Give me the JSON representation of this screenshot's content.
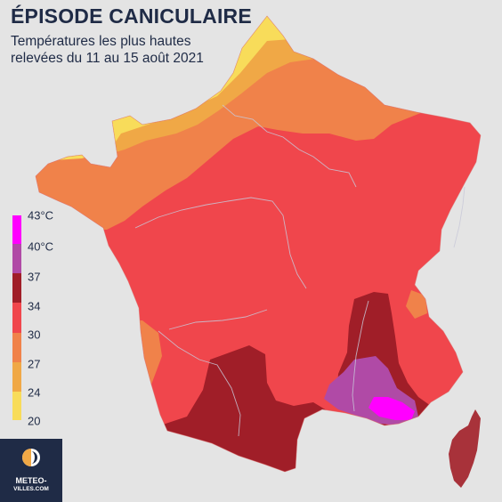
{
  "title": "ÉPISODE CANICULAIRE",
  "subtitle_line1": "Températures les plus hautes",
  "subtitle_line2": "relevées du 11 au 15 août 2021",
  "legend": [
    {
      "label": "43°C",
      "color": "#ff00ff"
    },
    {
      "label": "40°C",
      "color": "#b04aa6"
    },
    {
      "label": "37",
      "color": "#a01e28"
    },
    {
      "label": "34",
      "color": "#f0464c"
    },
    {
      "label": "30",
      "color": "#f0824a"
    },
    {
      "label": "27",
      "color": "#f0a846"
    },
    {
      "label": "24",
      "color": "#f8dc5a"
    },
    {
      "label": "20",
      "color": ""
    }
  ],
  "brand": {
    "line1": "METEO-",
    "line2": "VILLES.COM"
  }
}
